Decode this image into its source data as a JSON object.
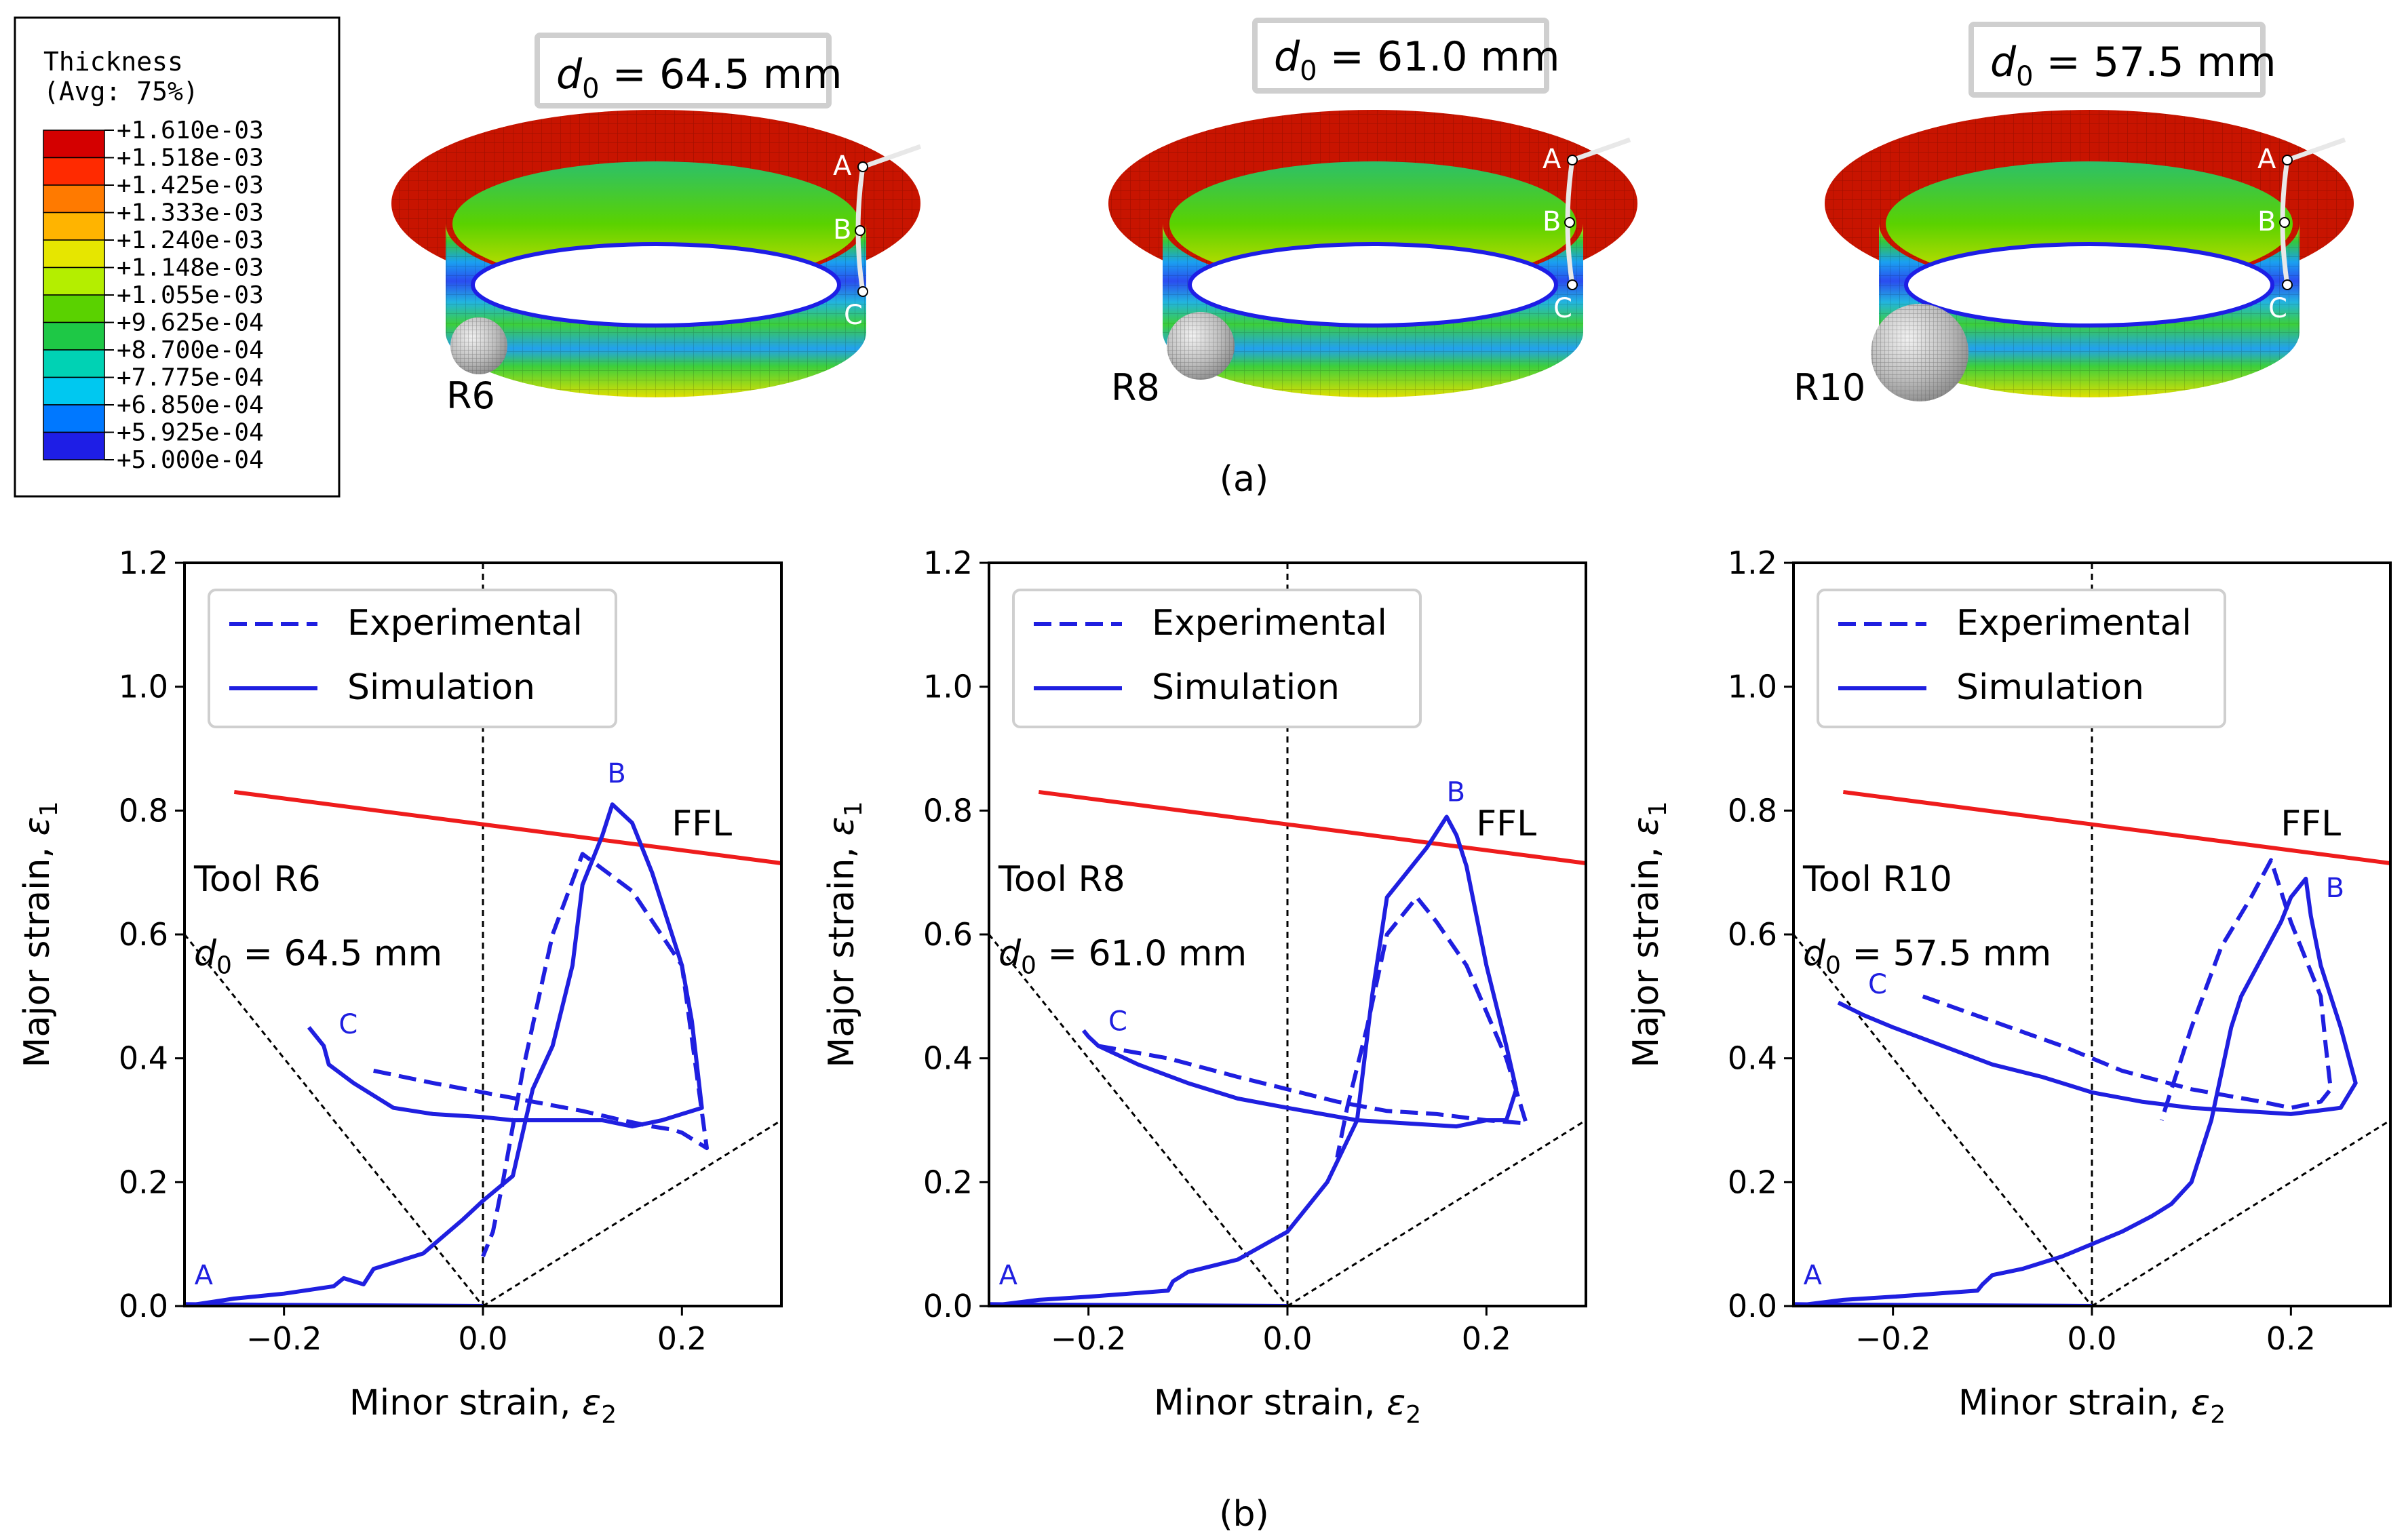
{
  "colorbar": {
    "title_line1": "Thickness",
    "title_line2": "(Avg: 75%)",
    "levels": [
      "+1.610e-03",
      "+1.518e-03",
      "+1.425e-03",
      "+1.333e-03",
      "+1.240e-03",
      "+1.148e-03",
      "+1.055e-03",
      "+9.625e-04",
      "+8.700e-04",
      "+7.775e-04",
      "+6.850e-04",
      "+5.925e-04",
      "+5.000e-04"
    ],
    "colors": [
      "#d40000",
      "#ff2a00",
      "#ff7a00",
      "#ffb400",
      "#e6e600",
      "#b4ee00",
      "#5ad200",
      "#1ec846",
      "#00d2b4",
      "#00c8f0",
      "#0078ff",
      "#1e1ee6"
    ]
  },
  "specimens": [
    {
      "label_prefix": "d",
      "label_sub": "0",
      "label_value": " = 64.5 mm",
      "tool": "R6"
    },
    {
      "label_prefix": "d",
      "label_sub": "0",
      "label_value": " = 61.0 mm",
      "tool": "R8"
    },
    {
      "label_prefix": "d",
      "label_sub": "0",
      "label_value": " = 57.5 mm",
      "tool": "R10"
    }
  ],
  "path_points": [
    "A",
    "B",
    "C"
  ],
  "panel_a_label": "(a)",
  "panel_b_label": "(b)",
  "colors": {
    "exp": "#1f1fe0",
    "sim": "#1f1fe0",
    "ffl": "#ee1c1c",
    "guide": "#000000"
  },
  "chart_data": [
    {
      "type": "line",
      "xlabel_main": "Minor strain, ",
      "xlabel_sym": "ε",
      "xlabel_sub": "2",
      "ylabel_main": "Major strain, ",
      "ylabel_sym": "ε",
      "ylabel_sub": "1",
      "xlim": [
        -0.3,
        0.3
      ],
      "ylim": [
        0.0,
        1.2
      ],
      "xticks": [
        -0.2,
        0.0,
        0.2
      ],
      "xtick_labels": [
        "−0.2",
        "0.0",
        "0.2"
      ],
      "yticks": [
        0.0,
        0.2,
        0.4,
        0.6,
        0.8,
        1.0,
        1.2
      ],
      "ytick_labels": [
        "0.0",
        "0.2",
        "0.4",
        "0.6",
        "0.8",
        "1.0",
        "1.2"
      ],
      "legend": [
        "Experimental",
        "Simulation"
      ],
      "annotation_line1": "Tool R6",
      "annotation_line2_sym": "d",
      "annotation_line2_sub": "0",
      "annotation_line2_value": " = 64.5 mm",
      "ffl_label": "FFL",
      "ffl": {
        "x": [
          -0.25,
          0.3
        ],
        "y": [
          0.83,
          0.715
        ]
      },
      "series": [
        {
          "name": "Experimental",
          "style": "dashed",
          "x": [
            -0.11,
            -0.05,
            0.0,
            0.05,
            0.1,
            0.14,
            0.17,
            0.19,
            0.2,
            0.21,
            0.225,
            0.2,
            0.15,
            0.1,
            0.07,
            0.04,
            0.02,
            0.01,
            0.0
          ],
          "y": [
            0.38,
            0.36,
            0.345,
            0.33,
            0.315,
            0.3,
            0.29,
            0.285,
            0.28,
            0.27,
            0.255,
            0.55,
            0.67,
            0.73,
            0.6,
            0.38,
            0.2,
            0.12,
            0.08
          ]
        },
        {
          "name": "Simulation",
          "style": "solid",
          "x": [
            -0.3,
            -0.25,
            -0.2,
            -0.15,
            -0.14,
            -0.12,
            -0.11,
            -0.06,
            -0.02,
            0.0,
            0.03,
            0.05,
            0.07,
            0.09,
            0.1,
            0.12,
            0.13,
            0.15,
            0.17,
            0.19,
            0.2,
            0.21,
            0.22,
            0.2,
            0.18,
            0.15,
            0.12,
            0.09,
            0.06,
            0.03,
            0.0,
            -0.05,
            -0.09,
            -0.13,
            -0.155,
            -0.16,
            -0.175
          ],
          "y": [
            0.0,
            0.012,
            0.02,
            0.032,
            0.045,
            0.035,
            0.06,
            0.085,
            0.14,
            0.17,
            0.21,
            0.35,
            0.42,
            0.55,
            0.68,
            0.76,
            0.81,
            0.78,
            0.7,
            0.6,
            0.55,
            0.46,
            0.32,
            0.31,
            0.3,
            0.29,
            0.3,
            0.3,
            0.3,
            0.3,
            0.305,
            0.31,
            0.32,
            0.36,
            0.39,
            0.42,
            0.45
          ]
        },
        {
          "name": "Simulation-baseline",
          "style": "solid",
          "x": [
            -0.3,
            0.0
          ],
          "y": [
            0.003,
            0.0
          ]
        }
      ],
      "point_labels": [
        {
          "text": "A",
          "x": -0.29,
          "y": 0.035
        },
        {
          "text": "B",
          "x": 0.125,
          "y": 0.845
        },
        {
          "text": "C",
          "x": -0.145,
          "y": 0.44
        }
      ]
    },
    {
      "type": "line",
      "xlabel_main": "Minor strain, ",
      "xlabel_sym": "ε",
      "xlabel_sub": "2",
      "ylabel_main": "Major strain, ",
      "ylabel_sym": "ε",
      "ylabel_sub": "1",
      "xlim": [
        -0.3,
        0.3
      ],
      "ylim": [
        0.0,
        1.2
      ],
      "xticks": [
        -0.2,
        0.0,
        0.2
      ],
      "xtick_labels": [
        "−0.2",
        "0.0",
        "0.2"
      ],
      "yticks": [
        0.0,
        0.2,
        0.4,
        0.6,
        0.8,
        1.0,
        1.2
      ],
      "ytick_labels": [
        "0.0",
        "0.2",
        "0.4",
        "0.6",
        "0.8",
        "1.0",
        "1.2"
      ],
      "legend": [
        "Experimental",
        "Simulation"
      ],
      "annotation_line1": "Tool R8",
      "annotation_line2_sym": "d",
      "annotation_line2_sub": "0",
      "annotation_line2_value": " = 61.0 mm",
      "ffl_label": "FFL",
      "ffl": {
        "x": [
          -0.25,
          0.3
        ],
        "y": [
          0.83,
          0.715
        ]
      },
      "series": [
        {
          "name": "Experimental",
          "style": "dashed",
          "x": [
            -0.19,
            -0.12,
            -0.05,
            0.0,
            0.05,
            0.1,
            0.15,
            0.2,
            0.24,
            0.22,
            0.18,
            0.15,
            0.13,
            0.1,
            0.08,
            0.06,
            0.05
          ],
          "y": [
            0.42,
            0.4,
            0.37,
            0.35,
            0.33,
            0.315,
            0.31,
            0.3,
            0.295,
            0.4,
            0.55,
            0.62,
            0.66,
            0.6,
            0.45,
            0.32,
            0.24
          ]
        },
        {
          "name": "Simulation",
          "style": "solid",
          "x": [
            -0.3,
            -0.25,
            -0.2,
            -0.12,
            -0.115,
            -0.1,
            -0.05,
            0.0,
            0.04,
            0.07,
            0.085,
            0.1,
            0.12,
            0.14,
            0.16,
            0.17,
            0.18,
            0.2,
            0.22,
            0.23,
            0.22,
            0.2,
            0.17,
            0.12,
            0.07,
            0.0,
            -0.05,
            -0.1,
            -0.15,
            -0.19,
            -0.2,
            -0.205
          ],
          "y": [
            0.0,
            0.01,
            0.015,
            0.025,
            0.04,
            0.055,
            0.075,
            0.12,
            0.2,
            0.3,
            0.5,
            0.66,
            0.7,
            0.74,
            0.79,
            0.76,
            0.71,
            0.55,
            0.42,
            0.35,
            0.3,
            0.3,
            0.29,
            0.295,
            0.3,
            0.32,
            0.335,
            0.36,
            0.39,
            0.42,
            0.435,
            0.445
          ]
        },
        {
          "name": "Simulation-baseline",
          "style": "solid",
          "x": [
            -0.3,
            0.0
          ],
          "y": [
            0.003,
            0.0
          ]
        }
      ],
      "point_labels": [
        {
          "text": "A",
          "x": -0.29,
          "y": 0.035
        },
        {
          "text": "B",
          "x": 0.16,
          "y": 0.815
        },
        {
          "text": "C",
          "x": -0.18,
          "y": 0.445
        }
      ]
    },
    {
      "type": "line",
      "xlabel_main": "Minor strain, ",
      "xlabel_sym": "ε",
      "xlabel_sub": "2",
      "ylabel_main": "Major strain, ",
      "ylabel_sym": "ε",
      "ylabel_sub": "1",
      "xlim": [
        -0.3,
        0.3
      ],
      "ylim": [
        0.0,
        1.2
      ],
      "xticks": [
        -0.2,
        0.0,
        0.2
      ],
      "xtick_labels": [
        "−0.2",
        "0.0",
        "0.2"
      ],
      "yticks": [
        0.0,
        0.2,
        0.4,
        0.6,
        0.8,
        1.0,
        1.2
      ],
      "ytick_labels": [
        "0.0",
        "0.2",
        "0.4",
        "0.6",
        "0.8",
        "1.0",
        "1.2"
      ],
      "legend": [
        "Experimental",
        "Simulation"
      ],
      "annotation_line1": "Tool R10",
      "annotation_line2_sym": "d",
      "annotation_line2_sub": "0",
      "annotation_line2_value": " = 57.5 mm",
      "ffl_label": "FFL",
      "ffl": {
        "x": [
          -0.25,
          0.3
        ],
        "y": [
          0.83,
          0.715
        ]
      },
      "series": [
        {
          "name": "Experimental",
          "style": "dashed",
          "x": [
            -0.17,
            -0.1,
            -0.03,
            0.03,
            0.1,
            0.17,
            0.2,
            0.23,
            0.24,
            0.235,
            0.23,
            0.2,
            0.18,
            0.16,
            0.13,
            0.1,
            0.08,
            0.07
          ],
          "y": [
            0.5,
            0.46,
            0.42,
            0.38,
            0.35,
            0.33,
            0.32,
            0.33,
            0.35,
            0.42,
            0.5,
            0.62,
            0.72,
            0.66,
            0.58,
            0.45,
            0.35,
            0.3
          ]
        },
        {
          "name": "Simulation",
          "style": "solid",
          "x": [
            -0.3,
            -0.25,
            -0.2,
            -0.115,
            -0.11,
            -0.1,
            -0.07,
            -0.03,
            0.0,
            0.03,
            0.06,
            0.08,
            0.1,
            0.12,
            0.14,
            0.15,
            0.17,
            0.19,
            0.2,
            0.21,
            0.215,
            0.22,
            0.23,
            0.25,
            0.265,
            0.25,
            0.2,
            0.15,
            0.1,
            0.05,
            0.0,
            -0.05,
            -0.1,
            -0.15,
            -0.2,
            -0.23,
            -0.255
          ],
          "y": [
            0.0,
            0.01,
            0.015,
            0.025,
            0.035,
            0.05,
            0.06,
            0.08,
            0.1,
            0.12,
            0.145,
            0.165,
            0.2,
            0.3,
            0.45,
            0.5,
            0.56,
            0.62,
            0.66,
            0.68,
            0.69,
            0.63,
            0.55,
            0.45,
            0.36,
            0.32,
            0.31,
            0.315,
            0.32,
            0.33,
            0.345,
            0.37,
            0.39,
            0.42,
            0.45,
            0.47,
            0.49
          ]
        },
        {
          "name": "Simulation-baseline",
          "style": "solid",
          "x": [
            -0.3,
            0.0
          ],
          "y": [
            0.003,
            0.0
          ]
        }
      ],
      "point_labels": [
        {
          "text": "A",
          "x": -0.29,
          "y": 0.035
        },
        {
          "text": "B",
          "x": 0.235,
          "y": 0.66
        },
        {
          "text": "C",
          "x": -0.225,
          "y": 0.505
        }
      ]
    }
  ]
}
